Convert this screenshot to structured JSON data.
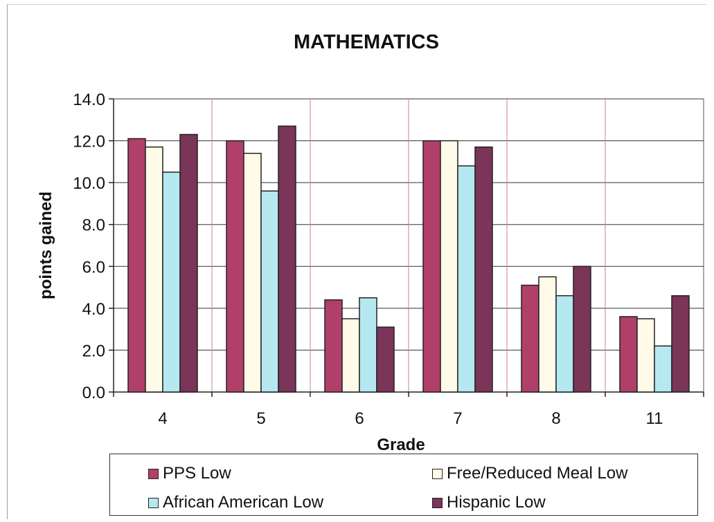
{
  "chart_data": {
    "type": "bar",
    "title": "MATHEMATICS",
    "xlabel": "Grade",
    "ylabel": "points gained",
    "categories": [
      "4",
      "5",
      "6",
      "7",
      "8",
      "11"
    ],
    "ylim": [
      0,
      14
    ],
    "yticks": [
      "0.0",
      "2.0",
      "4.0",
      "6.0",
      "8.0",
      "10.0",
      "12.0",
      "14.0"
    ],
    "grid": "horizontal major + vertical category separators",
    "legend_position": "bottom",
    "series": [
      {
        "name": "PPS Low",
        "color": "#b0406a",
        "values": [
          12.1,
          12.0,
          4.4,
          12.0,
          5.1,
          3.6
        ]
      },
      {
        "name": "Free/Reduced Meal Low",
        "color": "#fffbe8",
        "values": [
          11.7,
          11.4,
          3.5,
          12.0,
          5.5,
          3.5
        ]
      },
      {
        "name": "African American Low",
        "color": "#b6e8f2",
        "values": [
          10.5,
          9.6,
          4.5,
          10.8,
          4.6,
          2.2
        ]
      },
      {
        "name": "Hispanic Low",
        "color": "#7a3558",
        "values": [
          12.3,
          12.7,
          3.1,
          11.7,
          6.0,
          4.6
        ]
      }
    ]
  }
}
